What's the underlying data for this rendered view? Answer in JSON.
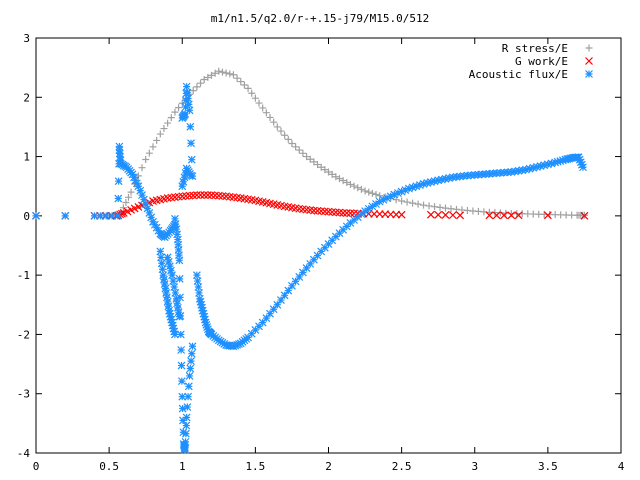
{
  "chart_data": {
    "type": "scatter",
    "title": "m1/n1.5/q2.0/r-+.15-j79/M15.0/512",
    "xlabel": "",
    "ylabel": "",
    "xlim": [
      0,
      4
    ],
    "ylim": [
      -4,
      3
    ],
    "x_ticks": [
      "0",
      "0.5",
      "1",
      "1.5",
      "2",
      "2.5",
      "3",
      "3.5",
      "4"
    ],
    "y_ticks": [
      "3",
      "2",
      "1",
      "0",
      "-1",
      "-2",
      "-3",
      "-4"
    ],
    "x_tick_values": [
      0,
      0.5,
      1,
      1.5,
      2,
      2.5,
      3,
      3.5,
      4
    ],
    "y_tick_values": [
      3,
      2,
      1,
      0,
      -1,
      -2,
      -3,
      -4
    ],
    "grid": false,
    "legend_position": "top-right",
    "series": [
      {
        "name": "R stress/E",
        "marker": "plus",
        "color": "#a0a0a0",
        "points": [
          [
            0.58,
            0.05
          ],
          [
            0.65,
            0.4
          ],
          [
            0.75,
            0.95
          ],
          [
            0.85,
            1.38
          ],
          [
            0.95,
            1.75
          ],
          [
            1.05,
            2.05
          ],
          [
            1.15,
            2.3
          ],
          [
            1.25,
            2.44
          ],
          [
            1.35,
            2.38
          ],
          [
            1.45,
            2.15
          ],
          [
            1.55,
            1.82
          ],
          [
            1.65,
            1.5
          ],
          [
            1.75,
            1.22
          ],
          [
            1.85,
            1.0
          ],
          [
            1.95,
            0.82
          ],
          [
            2.05,
            0.66
          ],
          [
            2.15,
            0.53
          ],
          [
            2.25,
            0.42
          ],
          [
            2.35,
            0.34
          ],
          [
            2.5,
            0.25
          ],
          [
            2.65,
            0.18
          ],
          [
            2.8,
            0.13
          ],
          [
            2.95,
            0.09
          ],
          [
            3.1,
            0.06
          ],
          [
            3.25,
            0.04
          ],
          [
            3.4,
            0.03
          ],
          [
            3.55,
            0.02
          ],
          [
            3.7,
            0.01
          ],
          [
            3.75,
            0.01
          ]
        ]
      },
      {
        "name": "G work/E",
        "marker": "x",
        "color": "#ff0000",
        "points": [
          [
            0.0,
            0.0
          ],
          [
            0.2,
            0.0
          ],
          [
            0.4,
            0.0
          ],
          [
            0.55,
            0.0
          ],
          [
            0.6,
            0.05
          ],
          [
            0.7,
            0.15
          ],
          [
            0.8,
            0.25
          ],
          [
            0.9,
            0.3
          ],
          [
            1.0,
            0.33
          ],
          [
            1.1,
            0.35
          ],
          [
            1.2,
            0.35
          ],
          [
            1.3,
            0.33
          ],
          [
            1.4,
            0.3
          ],
          [
            1.5,
            0.26
          ],
          [
            1.6,
            0.21
          ],
          [
            1.7,
            0.16
          ],
          [
            1.8,
            0.12
          ],
          [
            1.9,
            0.09
          ],
          [
            2.0,
            0.07
          ],
          [
            2.1,
            0.05
          ],
          [
            2.2,
            0.04
          ],
          [
            2.35,
            0.03
          ],
          [
            2.5,
            0.02
          ],
          [
            2.7,
            0.02
          ],
          [
            2.9,
            0.01
          ],
          [
            3.1,
            0.01
          ],
          [
            3.3,
            0.01
          ],
          [
            3.5,
            0.01
          ],
          [
            3.75,
            0.0
          ]
        ]
      },
      {
        "name": "Acoustic flux/E",
        "marker": "asterisk",
        "color": "#1e90ff",
        "points": [
          [
            0.0,
            0.0
          ],
          [
            0.2,
            0.0
          ],
          [
            0.4,
            0.0
          ],
          [
            0.56,
            0.0
          ],
          [
            0.57,
            1.17
          ],
          [
            0.57,
            1.11
          ],
          [
            0.58,
            0.88
          ],
          [
            0.62,
            0.82
          ],
          [
            0.66,
            0.7
          ],
          [
            0.7,
            0.5
          ],
          [
            0.75,
            0.2
          ],
          [
            0.8,
            -0.1
          ],
          [
            0.85,
            -0.3
          ],
          [
            0.88,
            -0.36
          ],
          [
            0.92,
            -0.25
          ],
          [
            0.95,
            -0.15
          ],
          [
            0.85,
            -0.6
          ],
          [
            0.87,
            -1.0
          ],
          [
            0.89,
            -1.3
          ],
          [
            0.91,
            -1.6
          ],
          [
            0.93,
            -1.8
          ],
          [
            0.95,
            -2.0
          ],
          [
            0.9,
            -0.7
          ],
          [
            0.93,
            -1.0
          ],
          [
            0.96,
            -1.4
          ],
          [
            0.98,
            -1.7
          ],
          [
            0.95,
            -0.05
          ],
          [
            0.97,
            -0.4
          ],
          [
            0.98,
            -0.75
          ],
          [
            0.99,
            -2.0
          ],
          [
            1.0,
            -3.05
          ],
          [
            1.01,
            -3.85
          ],
          [
            1.02,
            -3.95
          ],
          [
            1.03,
            -3.4
          ],
          [
            1.05,
            -2.7
          ],
          [
            1.07,
            -2.2
          ],
          [
            1.0,
            0.5
          ],
          [
            1.03,
            0.8
          ],
          [
            1.06,
            0.68
          ],
          [
            1.1,
            -1.0
          ],
          [
            1.12,
            -1.4
          ],
          [
            1.14,
            -1.6
          ],
          [
            1.16,
            -1.8
          ],
          [
            1.18,
            -1.95
          ],
          [
            1.2,
            -2.0
          ],
          [
            1.25,
            -2.1
          ],
          [
            1.3,
            -2.18
          ],
          [
            1.35,
            -2.2
          ],
          [
            1.4,
            -2.15
          ],
          [
            1.45,
            -2.05
          ],
          [
            1.55,
            -1.8
          ],
          [
            1.65,
            -1.5
          ],
          [
            1.75,
            -1.18
          ],
          [
            1.85,
            -0.88
          ],
          [
            1.95,
            -0.6
          ],
          [
            2.05,
            -0.35
          ],
          [
            2.15,
            -0.12
          ],
          [
            2.25,
            0.08
          ],
          [
            2.35,
            0.24
          ],
          [
            2.45,
            0.36
          ],
          [
            2.55,
            0.46
          ],
          [
            2.65,
            0.54
          ],
          [
            2.75,
            0.6
          ],
          [
            2.85,
            0.65
          ],
          [
            2.95,
            0.68
          ],
          [
            3.05,
            0.7
          ],
          [
            3.15,
            0.72
          ],
          [
            3.25,
            0.74
          ],
          [
            3.35,
            0.78
          ],
          [
            3.45,
            0.84
          ],
          [
            3.55,
            0.9
          ],
          [
            3.62,
            0.95
          ],
          [
            3.67,
            0.98
          ],
          [
            3.71,
            0.99
          ],
          [
            3.74,
            0.82
          ],
          [
            1.0,
            1.65
          ],
          [
            1.02,
            1.72
          ],
          [
            1.03,
            2.18
          ],
          [
            1.05,
            1.78
          ],
          [
            1.07,
            0.67
          ]
        ]
      }
    ]
  }
}
